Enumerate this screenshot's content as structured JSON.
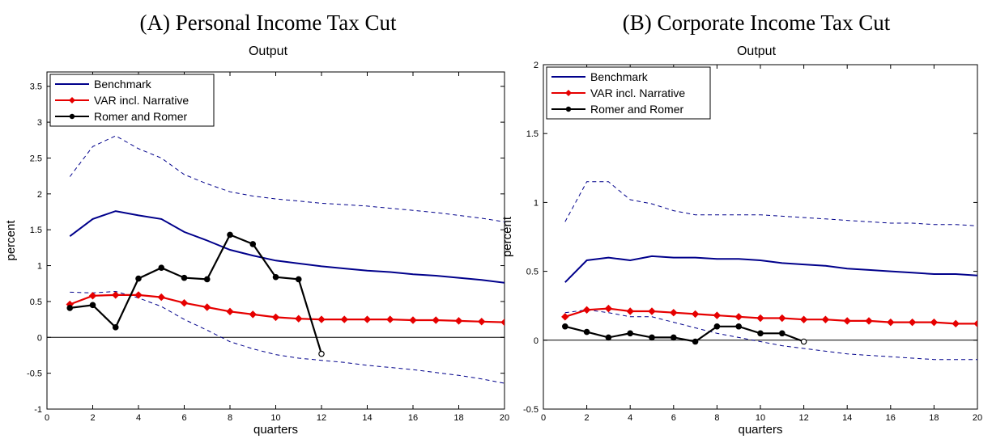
{
  "chart_data": [
    {
      "type": "line",
      "title": "(A) Personal Income Tax Cut",
      "subtitle": "Output",
      "xlabel": "quarters",
      "ylabel": "percent",
      "xlim": [
        0,
        20
      ],
      "ylim": [
        -1,
        3.7
      ],
      "xticks": [
        0,
        2,
        4,
        6,
        8,
        10,
        12,
        14,
        16,
        18,
        20
      ],
      "yticks": [
        -1,
        -0.5,
        0,
        0.5,
        1,
        1.5,
        2,
        2.5,
        3,
        3.5
      ],
      "legend_position": "top-left",
      "series": [
        {
          "name": "Benchmark",
          "color": "#00008b",
          "style": "solid",
          "x": [
            1,
            2,
            3,
            4,
            5,
            6,
            7,
            8,
            9,
            10,
            11,
            12,
            13,
            14,
            15,
            16,
            17,
            18,
            19,
            20
          ],
          "y": [
            1.41,
            1.65,
            1.76,
            1.7,
            1.65,
            1.47,
            1.35,
            1.22,
            1.14,
            1.07,
            1.03,
            0.99,
            0.96,
            0.93,
            0.91,
            0.88,
            0.86,
            0.83,
            0.8,
            0.76
          ]
        },
        {
          "name": "VAR incl. Narrative",
          "color": "#e60000",
          "style": "solid-diamond",
          "x": [
            1,
            2,
            3,
            4,
            5,
            6,
            7,
            8,
            9,
            10,
            11,
            12,
            13,
            14,
            15,
            16,
            17,
            18,
            19,
            20
          ],
          "y": [
            0.46,
            0.58,
            0.59,
            0.59,
            0.56,
            0.48,
            0.42,
            0.36,
            0.32,
            0.28,
            0.26,
            0.25,
            0.25,
            0.25,
            0.25,
            0.24,
            0.24,
            0.23,
            0.22,
            0.21
          ]
        },
        {
          "name": "Romer and Romer",
          "color": "#000000",
          "style": "solid-dot",
          "x": [
            1,
            2,
            3,
            4,
            5,
            6,
            7,
            8,
            9,
            10,
            11,
            12
          ],
          "y": [
            0.41,
            0.45,
            0.14,
            0.82,
            0.97,
            0.83,
            0.81,
            1.43,
            1.3,
            0.84,
            0.81,
            -0.23
          ]
        }
      ],
      "bands": [
        {
          "color": "#00008b",
          "style": "dashed",
          "x": [
            1,
            2,
            3,
            4,
            5,
            6,
            7,
            8,
            9,
            10,
            11,
            12,
            13,
            14,
            15,
            16,
            17,
            18,
            19,
            20
          ],
          "y": [
            2.24,
            2.66,
            2.81,
            2.63,
            2.5,
            2.27,
            2.14,
            2.03,
            1.97,
            1.93,
            1.9,
            1.87,
            1.85,
            1.83,
            1.8,
            1.77,
            1.74,
            1.7,
            1.66,
            1.61
          ]
        },
        {
          "color": "#00008b",
          "style": "dashed",
          "x": [
            1,
            2,
            3,
            4,
            5,
            6,
            7,
            8,
            9,
            10,
            11,
            12,
            13,
            14,
            15,
            16,
            17,
            18,
            19,
            20
          ],
          "y": [
            0.63,
            0.62,
            0.64,
            0.55,
            0.43,
            0.25,
            0.1,
            -0.06,
            -0.16,
            -0.24,
            -0.29,
            -0.32,
            -0.35,
            -0.39,
            -0.42,
            -0.45,
            -0.49,
            -0.53,
            -0.58,
            -0.64
          ]
        }
      ]
    },
    {
      "type": "line",
      "title": "(B) Corporate Income Tax Cut",
      "subtitle": "Output",
      "xlabel": "quarters",
      "ylabel": "percent",
      "xlim": [
        0,
        20
      ],
      "ylim": [
        -0.5,
        2
      ],
      "xticks": [
        0,
        2,
        4,
        6,
        8,
        10,
        12,
        14,
        16,
        18,
        20
      ],
      "yticks": [
        -0.5,
        0,
        0.5,
        1,
        1.5,
        2
      ],
      "legend_position": "top-left",
      "series": [
        {
          "name": "Benchmark",
          "color": "#00008b",
          "style": "solid",
          "x": [
            1,
            2,
            3,
            4,
            5,
            6,
            7,
            8,
            9,
            10,
            11,
            12,
            13,
            14,
            15,
            16,
            17,
            18,
            19,
            20
          ],
          "y": [
            0.42,
            0.58,
            0.6,
            0.58,
            0.61,
            0.6,
            0.6,
            0.59,
            0.59,
            0.58,
            0.56,
            0.55,
            0.54,
            0.52,
            0.51,
            0.5,
            0.49,
            0.48,
            0.48,
            0.47
          ]
        },
        {
          "name": "VAR incl. Narrative",
          "color": "#e60000",
          "style": "solid-diamond",
          "x": [
            1,
            2,
            3,
            4,
            5,
            6,
            7,
            8,
            9,
            10,
            11,
            12,
            13,
            14,
            15,
            16,
            17,
            18,
            19,
            20
          ],
          "y": [
            0.17,
            0.22,
            0.23,
            0.21,
            0.21,
            0.2,
            0.19,
            0.18,
            0.17,
            0.16,
            0.16,
            0.15,
            0.15,
            0.14,
            0.14,
            0.13,
            0.13,
            0.13,
            0.12,
            0.12
          ]
        },
        {
          "name": "Romer and Romer",
          "color": "#000000",
          "style": "solid-dot",
          "x": [
            1,
            2,
            3,
            4,
            5,
            6,
            7,
            8,
            9,
            10,
            11,
            12
          ],
          "y": [
            0.1,
            0.06,
            0.02,
            0.05,
            0.02,
            0.02,
            -0.01,
            0.1,
            0.1,
            0.05,
            0.05,
            -0.01
          ]
        }
      ],
      "bands": [
        {
          "color": "#00008b",
          "style": "dashed",
          "x": [
            1,
            2,
            3,
            4,
            5,
            6,
            7,
            8,
            9,
            10,
            11,
            12,
            13,
            14,
            15,
            16,
            17,
            18,
            19,
            20
          ],
          "y": [
            0.86,
            1.15,
            1.15,
            1.02,
            0.99,
            0.94,
            0.91,
            0.91,
            0.91,
            0.91,
            0.9,
            0.89,
            0.88,
            0.87,
            0.86,
            0.85,
            0.85,
            0.84,
            0.84,
            0.83
          ]
        },
        {
          "color": "#00008b",
          "style": "dashed",
          "x": [
            1,
            2,
            3,
            4,
            5,
            6,
            7,
            8,
            9,
            10,
            11,
            12,
            13,
            14,
            15,
            16,
            17,
            18,
            19,
            20
          ],
          "y": [
            0.2,
            0.22,
            0.2,
            0.17,
            0.17,
            0.13,
            0.09,
            0.05,
            0.02,
            -0.01,
            -0.04,
            -0.06,
            -0.08,
            -0.1,
            -0.11,
            -0.12,
            -0.13,
            -0.14,
            -0.14,
            -0.14
          ]
        }
      ]
    }
  ]
}
